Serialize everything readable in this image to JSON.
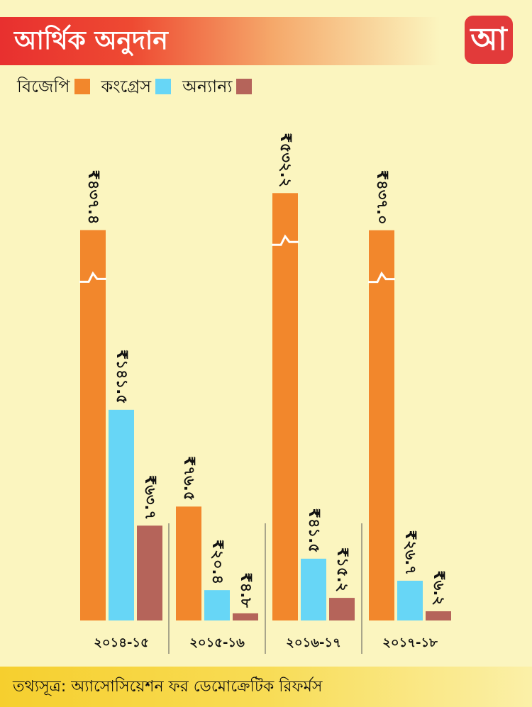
{
  "header": {
    "title": "আর্থিক অনুদান",
    "logo_text": "আ"
  },
  "colors": {
    "bjp": "#f2872c",
    "congress": "#67d6f6",
    "others": "#b5645a",
    "background": "#fbf5bf",
    "brand": "#e23a3a"
  },
  "footer": {
    "source": "তথ্যসূত্র: অ্যাসোসিয়েশন ফর ডেমোক্রেটিক রিফর্মস"
  },
  "chart_data": {
    "type": "bar",
    "title": "আর্থিক অনুদান",
    "legend": [
      {
        "name": "বিজেপি",
        "color": "#f2872c"
      },
      {
        "name": "কংগ্রেস",
        "color": "#67d6f6"
      },
      {
        "name": "অন্যান্য",
        "color": "#b5645a"
      }
    ],
    "legend_position": "top-left",
    "categories": [
      "২০১৪-১৫",
      "২০১৫-১৬",
      "২০১৬-১৭",
      "২০১৭-১৮"
    ],
    "series": [
      {
        "name": "বিজেপি",
        "values": [
          437.4,
          76.5,
          532.2,
          437.0
        ],
        "labels": [
          "₹৪৩৭.৪",
          "₹৭৬.৫",
          "₹৫৩২.২",
          "₹৪৩৭.০"
        ]
      },
      {
        "name": "কংগ্রেস",
        "values": [
          141.5,
          20.4,
          41.5,
          26.7
        ],
        "labels": [
          "₹১৪১.৫",
          "₹২০.৪",
          "₹৪১.৫",
          "₹২৬.৭"
        ]
      },
      {
        "name": "অন্যান্য",
        "values": [
          63.7,
          4.8,
          15.2,
          6.2
        ],
        "labels": [
          "₹৬৩.৭",
          "₹৪.৮",
          "₹১৫.২",
          "₹৬.২"
        ]
      }
    ],
    "axis_break": true,
    "grid": false
  }
}
